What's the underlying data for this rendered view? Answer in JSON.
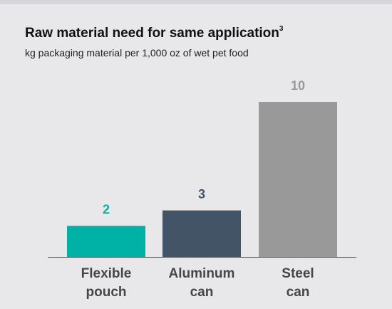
{
  "chart_data": {
    "type": "bar",
    "title": "Raw material need for same application",
    "title_superscript": "3",
    "subtitle": "kg packaging material per 1,000 oz of wet pet food",
    "categories": [
      [
        "Flexible",
        "pouch"
      ],
      [
        "Aluminum",
        "can"
      ],
      [
        "Steel",
        "can"
      ]
    ],
    "values": [
      2,
      3,
      10
    ],
    "value_labels": [
      "2",
      "3",
      "10"
    ],
    "colors": [
      "#00b2a6",
      "#435467",
      "#999999"
    ],
    "label_colors": [
      "#00b2a6",
      "#435467",
      "#999999"
    ],
    "ylim": [
      0,
      10
    ],
    "grid": false,
    "legend": "none"
  }
}
